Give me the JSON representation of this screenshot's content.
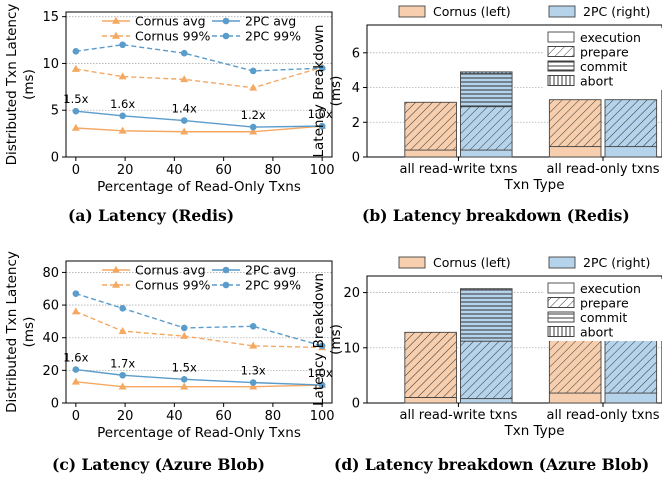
{
  "captions": {
    "a": "(a) Latency (Redis)",
    "b": "(b) Latency breakdown (Redis)",
    "c": "(c) Latency (Azure Blob)",
    "d": "(d) Latency breakdown (Azure Blob)"
  },
  "chart_data": [
    {
      "id": "a",
      "type": "line",
      "xlabel": "Percentage of Read-Only Txns",
      "ylabel": "Distributed Txn Latency (ms)",
      "xticks": [
        0,
        20,
        40,
        60,
        80,
        100
      ],
      "yticks": [
        0,
        5,
        10,
        15
      ],
      "xlim": [
        -4,
        104
      ],
      "ylim": [
        0,
        15.5
      ],
      "legend": "top-center",
      "grid": "y",
      "x": [
        0,
        19,
        44,
        72,
        100
      ],
      "series": [
        {
          "name": "Cornus avg",
          "color": "#f5a862",
          "dash": false,
          "marker": "triangle",
          "values": [
            3.1,
            2.8,
            2.7,
            2.7,
            3.3
          ]
        },
        {
          "name": "2PC avg",
          "color": "#5a9ccb",
          "dash": false,
          "marker": "circle",
          "values": [
            4.9,
            4.4,
            3.9,
            3.2,
            3.3
          ]
        },
        {
          "name": "Cornus 99%",
          "color": "#f5a862",
          "dash": true,
          "marker": "triangle",
          "values": [
            9.4,
            8.6,
            8.3,
            7.4,
            9.6
          ]
        },
        {
          "name": "2PC 99%",
          "color": "#5a9ccb",
          "dash": true,
          "marker": "circle",
          "values": [
            11.3,
            12.0,
            11.1,
            9.2,
            9.5
          ]
        }
      ],
      "annotations": [
        {
          "x": 0,
          "y": 4.9,
          "text": "1.5x"
        },
        {
          "x": 19,
          "y": 4.4,
          "text": "1.6x"
        },
        {
          "x": 44,
          "y": 3.9,
          "text": "1.4x"
        },
        {
          "x": 72,
          "y": 3.2,
          "text": "1.2x"
        },
        {
          "x": 100,
          "y": 3.3,
          "text": "1.0x"
        }
      ]
    },
    {
      "id": "b",
      "type": "bar",
      "xlabel": "Txn Type",
      "ylabel": "Latency Breakdown (ms)",
      "yticks": [
        0,
        2,
        4,
        6
      ],
      "ylim": [
        0,
        7.6
      ],
      "grid": "y",
      "categories": [
        "all read-write txns",
        "all read-only txns"
      ],
      "systems": [
        {
          "name": "Cornus (left)",
          "color": "#f7cfae"
        },
        {
          "name": "2PC (right)",
          "color": "#b5d3ea"
        }
      ],
      "components": [
        "execution",
        "prepare",
        "commit",
        "abort"
      ],
      "values": {
        "Cornus (left)": [
          [
            0.4,
            2.75,
            0,
            0
          ],
          [
            0.6,
            2.7,
            0,
            0
          ]
        ],
        "2PC (right)": [
          [
            0.4,
            2.5,
            1.9,
            0.1
          ],
          [
            0.6,
            2.7,
            0,
            0
          ]
        ]
      }
    },
    {
      "id": "c",
      "type": "line",
      "xlabel": "Percentage of Read-Only Txns",
      "ylabel": "Distributed Txn Latency (ms)",
      "xticks": [
        0,
        20,
        40,
        60,
        80,
        100
      ],
      "yticks": [
        0,
        20,
        40,
        60,
        80
      ],
      "xlim": [
        -4,
        104
      ],
      "ylim": [
        0,
        87
      ],
      "legend": "top-center",
      "grid": "y",
      "x": [
        0,
        19,
        44,
        72,
        100
      ],
      "series": [
        {
          "name": "Cornus avg",
          "color": "#f5a862",
          "dash": false,
          "marker": "triangle",
          "values": [
            13,
            10,
            10,
            10,
            11
          ]
        },
        {
          "name": "2PC avg",
          "color": "#5a9ccb",
          "dash": false,
          "marker": "circle",
          "values": [
            20.5,
            17,
            14.5,
            12.5,
            11
          ]
        },
        {
          "name": "Cornus 99%",
          "color": "#f5a862",
          "dash": true,
          "marker": "triangle",
          "values": [
            56,
            44,
            41,
            35,
            34
          ]
        },
        {
          "name": "2PC 99%",
          "color": "#5a9ccb",
          "dash": true,
          "marker": "circle",
          "values": [
            67,
            58,
            46,
            47,
            35
          ]
        }
      ],
      "annotations": [
        {
          "x": 0,
          "y": 20.5,
          "text": "1.6x"
        },
        {
          "x": 19,
          "y": 17,
          "text": "1.7x"
        },
        {
          "x": 44,
          "y": 14.5,
          "text": "1.5x"
        },
        {
          "x": 72,
          "y": 12.5,
          "text": "1.3x"
        },
        {
          "x": 100,
          "y": 11,
          "text": "1.0x"
        }
      ]
    },
    {
      "id": "d",
      "type": "bar",
      "xlabel": "Txn Type",
      "ylabel": "Latency Breakdown (ms)",
      "yticks": [
        0,
        10,
        20
      ],
      "ylim": [
        0,
        23
      ],
      "grid": "y",
      "categories": [
        "all read-write txns",
        "all read-only txns"
      ],
      "systems": [
        {
          "name": "Cornus (left)",
          "color": "#f7cfae"
        },
        {
          "name": "2PC (right)",
          "color": "#b5d3ea"
        }
      ],
      "components": [
        "execution",
        "prepare",
        "commit",
        "abort"
      ],
      "values": {
        "Cornus (left)": [
          [
            1.0,
            11.8,
            0,
            0
          ],
          [
            1.8,
            9.8,
            0,
            0
          ]
        ],
        "2PC (right)": [
          [
            0.8,
            10.4,
            9.3,
            0.2
          ],
          [
            1.8,
            9.8,
            0,
            0
          ]
        ]
      }
    }
  ]
}
